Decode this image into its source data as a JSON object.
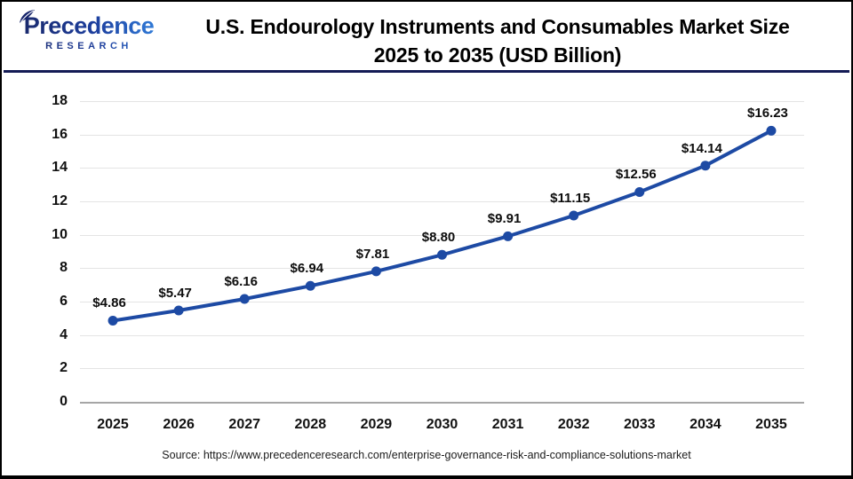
{
  "header": {
    "logo_line1": "Precedence",
    "logo_line2": "RESEARCH",
    "title_line1": "U.S. Endourology Instruments and Consumables Market Size",
    "title_line2": "2025 to 2035 (USD Billion)"
  },
  "chart_data": {
    "type": "line",
    "title": "U.S. Endourology Instruments and Consumables Market Size 2025 to 2035 (USD Billion)",
    "categories": [
      "2025",
      "2026",
      "2027",
      "2028",
      "2029",
      "2030",
      "2031",
      "2032",
      "2033",
      "2034",
      "2035"
    ],
    "values": [
      4.86,
      5.47,
      6.16,
      6.94,
      7.81,
      8.8,
      9.91,
      11.15,
      12.56,
      14.14,
      16.23
    ],
    "point_labels": [
      "$4.86",
      "$5.47",
      "$6.16",
      "$6.94",
      "$7.81",
      "$8.80",
      "$9.91",
      "$11.15",
      "$12.56",
      "$14.14",
      "$16.23"
    ],
    "yticks": [
      0,
      2,
      4,
      6,
      8,
      10,
      12,
      14,
      16,
      18
    ],
    "ylim": [
      0,
      18
    ],
    "xlabel": "",
    "ylabel": "",
    "grid": true,
    "legend": "none",
    "line_color": "#1d4aa4",
    "marker_color": "#1d4aa4",
    "gridline_color": "#e4e4e4",
    "zero_line_color": "#a6a6a6"
  },
  "footer": {
    "source": "Source: https://www.precedenceresearch.com/enterprise-governance-risk-and-compliance-solutions-market"
  },
  "colors": {
    "header_divider": "#141b55",
    "border": "#000000"
  }
}
